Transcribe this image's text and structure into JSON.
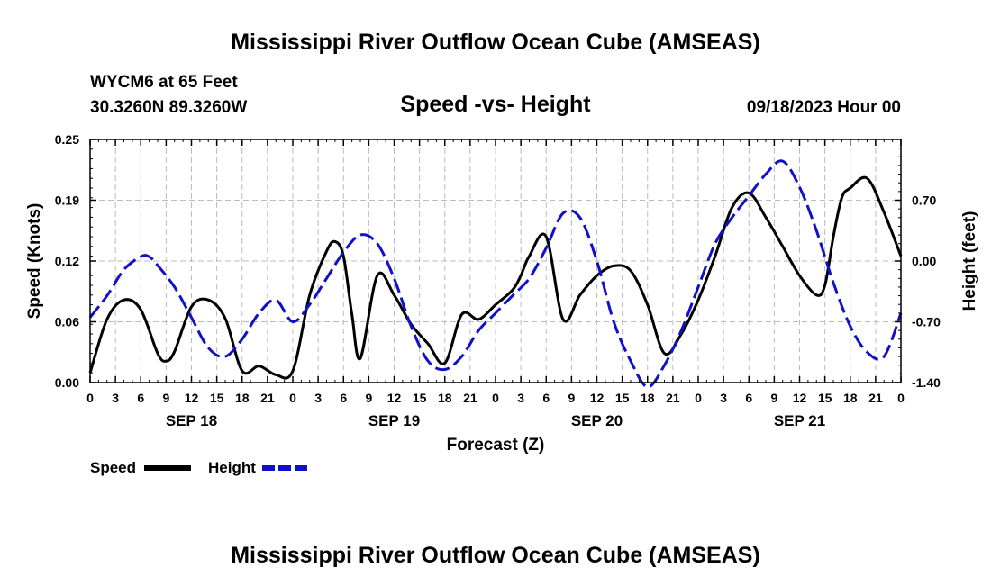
{
  "page": {
    "title": "Mississippi River Outflow Ocean Cube (AMSEAS)",
    "footer_title": "Mississippi River Outflow Ocean Cube (AMSEAS)",
    "station_line1": "WYCM6 at 65 Feet",
    "station_line2": "30.3260N  89.3260W",
    "subtitle": "Speed -vs- Height",
    "datetime": "09/18/2023 Hour 00"
  },
  "legend": {
    "speed_label": "Speed",
    "height_label": "Height"
  },
  "colors": {
    "speed": "#000000",
    "height": "#1010c8",
    "grid": "#bbbbbb"
  },
  "chart_data": {
    "type": "line",
    "title": "Speed -vs- Height",
    "xlabel": "Forecast (Z)",
    "ylabel": "Speed (Knots)",
    "y2label": "Height (feet)",
    "xlim": [
      0,
      96
    ],
    "ylim": [
      0,
      0.25
    ],
    "y2lim": [
      -1.4,
      1.4
    ],
    "yticks": [
      "0.00",
      "0.06",
      "0.12",
      "0.19",
      "0.25"
    ],
    "ytick_values": [
      0,
      0.0625,
      0.125,
      0.1875,
      0.25
    ],
    "y2ticks": [
      "0.70",
      "0.00",
      "-0.70",
      "-1.40"
    ],
    "y2tick_values": [
      0.7,
      0.0,
      -0.7,
      -1.4
    ],
    "xtick_labels": [
      "0",
      "3",
      "6",
      "9",
      "12",
      "15",
      "18",
      "21",
      "0",
      "3",
      "6",
      "9",
      "12",
      "15",
      "18",
      "21",
      "0",
      "3",
      "6",
      "9",
      "12",
      "15",
      "18",
      "21",
      "0",
      "3",
      "6",
      "9",
      "12",
      "15",
      "18",
      "21",
      "0"
    ],
    "date_labels": [
      {
        "hour": 12,
        "label": "SEP 18"
      },
      {
        "hour": 36,
        "label": "SEP 19"
      },
      {
        "hour": 60,
        "label": "SEP 20"
      },
      {
        "hour": 84,
        "label": "SEP 21"
      }
    ],
    "series": [
      {
        "name": "Speed",
        "axis": "left",
        "style": "solid",
        "x": [
          0,
          2,
          4,
          6,
          8,
          9,
          10,
          12,
          14,
          16,
          18,
          20,
          22,
          24,
          26,
          28,
          29,
          30,
          31,
          32,
          34,
          36,
          38,
          40,
          42,
          44,
          46,
          48,
          50,
          51,
          52,
          54,
          56,
          58,
          60,
          62,
          64,
          66,
          68,
          70,
          72,
          74,
          76,
          78,
          80,
          82,
          84,
          86,
          87,
          88,
          89,
          90,
          92,
          94,
          96
        ],
        "values": [
          0.01,
          0.065,
          0.085,
          0.075,
          0.03,
          0.022,
          0.032,
          0.078,
          0.085,
          0.066,
          0.012,
          0.017,
          0.008,
          0.012,
          0.09,
          0.135,
          0.145,
          0.13,
          0.07,
          0.025,
          0.11,
          0.09,
          0.06,
          0.04,
          0.02,
          0.07,
          0.065,
          0.08,
          0.095,
          0.11,
          0.13,
          0.15,
          0.065,
          0.09,
          0.11,
          0.12,
          0.115,
          0.08,
          0.03,
          0.05,
          0.085,
          0.13,
          0.18,
          0.195,
          0.17,
          0.14,
          0.11,
          0.09,
          0.1,
          0.15,
          0.19,
          0.2,
          0.21,
          0.175,
          0.13
        ]
      },
      {
        "name": "Height",
        "axis": "right",
        "style": "dashed",
        "x": [
          0,
          2,
          4,
          6,
          7,
          8,
          10,
          12,
          14,
          16,
          18,
          20,
          22,
          24,
          26,
          28,
          30,
          32,
          34,
          36,
          38,
          40,
          42,
          44,
          46,
          48,
          50,
          52,
          54,
          56,
          58,
          60,
          62,
          64,
          66,
          68,
          70,
          72,
          74,
          76,
          78,
          80,
          82,
          84,
          86,
          88,
          90,
          92,
          94,
          96
        ],
        "values": [
          -0.65,
          -0.4,
          -0.1,
          0.05,
          0.05,
          -0.05,
          -0.3,
          -0.65,
          -1.0,
          -1.1,
          -0.9,
          -0.6,
          -0.45,
          -0.7,
          -0.5,
          -0.2,
          0.1,
          0.3,
          0.2,
          -0.2,
          -0.75,
          -1.15,
          -1.25,
          -1.1,
          -0.8,
          -0.6,
          -0.4,
          -0.2,
          0.15,
          0.55,
          0.5,
          0.0,
          -0.7,
          -1.15,
          -1.45,
          -1.2,
          -0.8,
          -0.3,
          0.2,
          0.5,
          0.75,
          1.0,
          1.15,
          0.85,
          0.35,
          -0.25,
          -0.75,
          -1.05,
          -1.1,
          -0.6
        ]
      }
    ]
  }
}
